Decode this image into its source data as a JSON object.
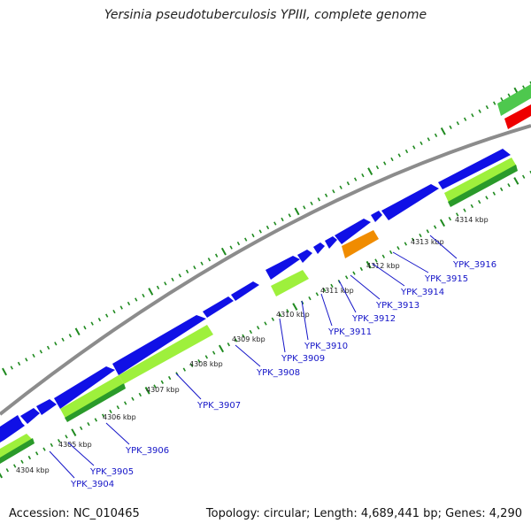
{
  "title": "Yersinia pseudotuberculosis YPIII, complete genome",
  "footer": {
    "accession": "Accession: NC_010465",
    "summary": "Topology: circular; Length: 4,689,441 bp; Genes: 4,290"
  },
  "colors": {
    "forward_cds": "#1010e6",
    "reverse_cds_light": "#9ef03c",
    "reverse_cds_dark": "#2a9a2a",
    "gene_orange": "#f08c00",
    "gene_red": "#ee0000",
    "gene_green_top": "#4ec84e",
    "backbone": "#909090",
    "tick": "#1f8a1f",
    "locus_label": "#1515c8"
  },
  "scale_labels": [
    "4304 kbp",
    "4305 kbp",
    "4306 kbp",
    "4307 kbp",
    "4308 kbp",
    "4309 kbp",
    "4310 kbp",
    "4311 kbp",
    "4312 kbp",
    "4313 kbp",
    "4314 kbp"
  ],
  "loci": [
    "YPK_3904",
    "YPK_3905",
    "YPK_3906",
    "YPK_3907",
    "YPK_3908",
    "YPK_3909",
    "YPK_3910",
    "YPK_3911",
    "YPK_3912",
    "YPK_3913",
    "YPK_3914",
    "YPK_3915",
    "YPK_3916"
  ]
}
